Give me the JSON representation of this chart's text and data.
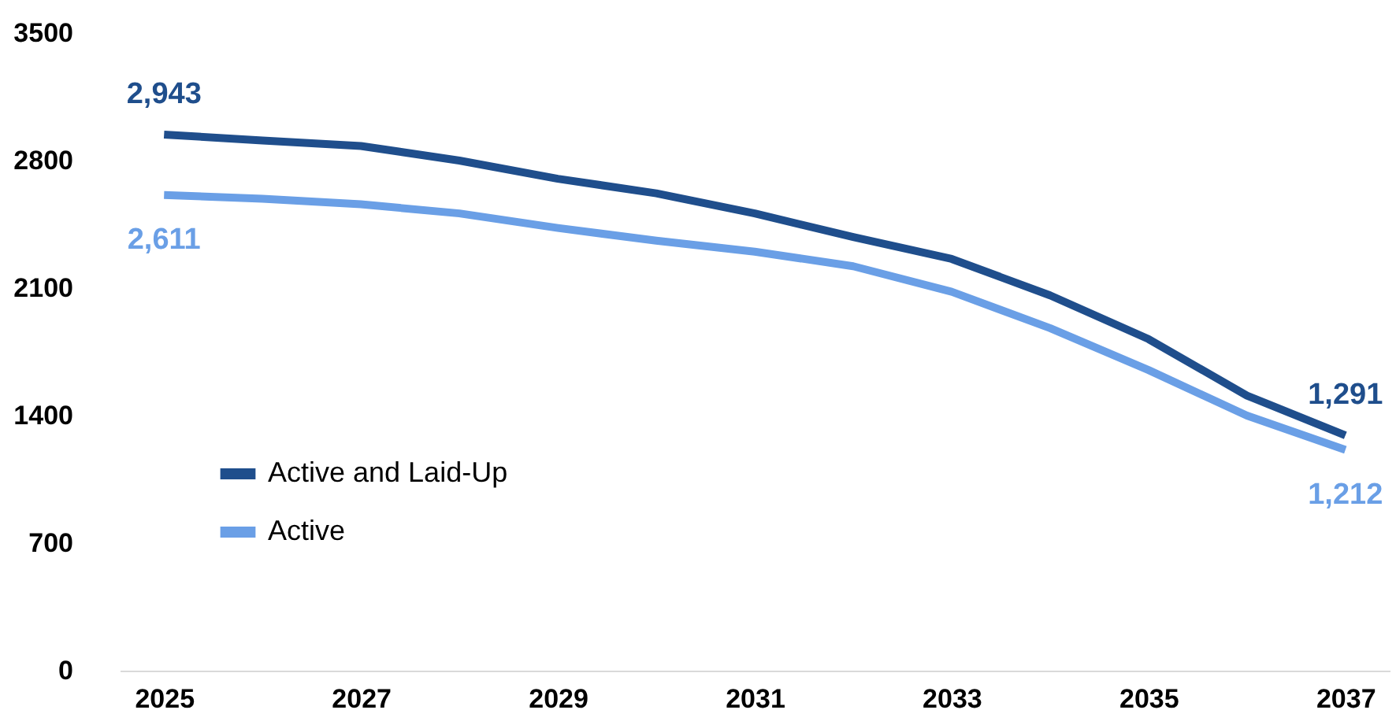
{
  "chart_data": {
    "type": "line",
    "categories": [
      "2025",
      null,
      "2027",
      null,
      "2029",
      null,
      "2031",
      null,
      "2033",
      null,
      "2035",
      null,
      "2037"
    ],
    "series": [
      {
        "name": "Active and Laid-Up",
        "color": "#1f4e8c",
        "values": [
          2943,
          2910,
          2880,
          2800,
          2700,
          2620,
          2510,
          2380,
          2260,
          2060,
          1820,
          1510,
          1291
        ],
        "value_labels": [
          "2,943",
          null,
          null,
          null,
          null,
          null,
          null,
          null,
          null,
          null,
          null,
          null,
          "1,291"
        ]
      },
      {
        "name": "Active",
        "color": "#6a9fe6",
        "values": [
          2611,
          2590,
          2560,
          2510,
          2430,
          2360,
          2300,
          2220,
          2080,
          1880,
          1650,
          1400,
          1212
        ],
        "value_labels": [
          "2,611",
          null,
          null,
          null,
          null,
          null,
          null,
          null,
          null,
          null,
          null,
          null,
          "1,212"
        ]
      }
    ],
    "ylim": [
      0,
      3500
    ],
    "yticks": [
      0,
      700,
      1400,
      2100,
      2800,
      3500
    ],
    "grid": false,
    "legend": "left",
    "marker": "none",
    "line_style": "solid"
  }
}
